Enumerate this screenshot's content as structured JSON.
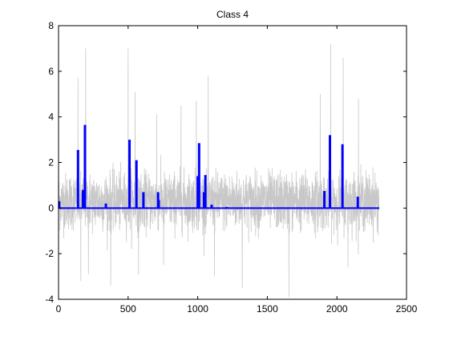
{
  "chart_data": {
    "type": "line",
    "title": "Class 4",
    "xlabel": "",
    "ylabel": "",
    "xlim": [
      0,
      2500
    ],
    "ylim": [
      -4,
      8
    ],
    "xticks": [
      0,
      500,
      1000,
      1500,
      2000,
      2500
    ],
    "yticks": [
      -4,
      -2,
      0,
      2,
      4,
      6,
      8
    ],
    "grid": false,
    "legend": "none",
    "n_samples": 2304,
    "series": [
      {
        "kind": "noise-signal",
        "color": "#c8c8c8",
        "x_range": [
          0,
          2304
        ],
        "mean": 0.3,
        "typical_range": [
          -1.5,
          2.2
        ],
        "peaks": [
          {
            "x": 140,
            "y": 5.7
          },
          {
            "x": 160,
            "y": -3.2
          },
          {
            "x": 195,
            "y": 7.0
          },
          {
            "x": 215,
            "y": -2.9
          },
          {
            "x": 375,
            "y": -3.4
          },
          {
            "x": 500,
            "y": 7.0
          },
          {
            "x": 550,
            "y": 5.1
          },
          {
            "x": 575,
            "y": -2.9
          },
          {
            "x": 705,
            "y": 4.1
          },
          {
            "x": 755,
            "y": -2.5
          },
          {
            "x": 880,
            "y": 4.5
          },
          {
            "x": 990,
            "y": 4.7
          },
          {
            "x": 1075,
            "y": 5.8
          },
          {
            "x": 1120,
            "y": -3.0
          },
          {
            "x": 1320,
            "y": -3.5
          },
          {
            "x": 1655,
            "y": -3.9
          },
          {
            "x": 1880,
            "y": 5.0
          },
          {
            "x": 1955,
            "y": 7.2
          },
          {
            "x": 2045,
            "y": 6.6
          },
          {
            "x": 2080,
            "y": -2.6
          },
          {
            "x": 2155,
            "y": 4.8
          }
        ]
      },
      {
        "kind": "stem",
        "color": "#0000ff",
        "baseline": 0,
        "x_range": [
          0,
          2304
        ],
        "points": [
          {
            "x": 5,
            "y": 0.3
          },
          {
            "x": 140,
            "y": 2.55
          },
          {
            "x": 175,
            "y": 0.8
          },
          {
            "x": 190,
            "y": 3.65
          },
          {
            "x": 340,
            "y": 0.2
          },
          {
            "x": 510,
            "y": 3.0
          },
          {
            "x": 560,
            "y": 2.1
          },
          {
            "x": 610,
            "y": 0.7
          },
          {
            "x": 715,
            "y": 0.7
          },
          {
            "x": 720,
            "y": 0.35
          },
          {
            "x": 1000,
            "y": 1.4
          },
          {
            "x": 1010,
            "y": 2.85
          },
          {
            "x": 1045,
            "y": 0.7
          },
          {
            "x": 1055,
            "y": 1.45
          },
          {
            "x": 1100,
            "y": 0.15
          },
          {
            "x": 1210,
            "y": 0.05
          },
          {
            "x": 1910,
            "y": 0.75
          },
          {
            "x": 1950,
            "y": 3.2
          },
          {
            "x": 2040,
            "y": 2.8
          },
          {
            "x": 2150,
            "y": 0.5
          }
        ]
      }
    ]
  }
}
